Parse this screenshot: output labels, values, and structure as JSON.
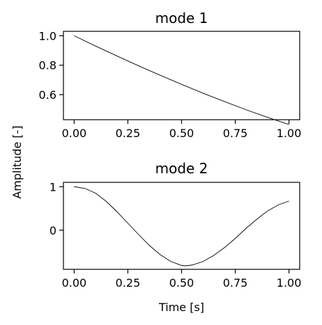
{
  "figure": {
    "shared_ylabel": "Amplitude [-]"
  },
  "chart_data": [
    {
      "type": "line",
      "title": "mode 1",
      "xlabel": "",
      "ylabel": "",
      "xlim": [
        -0.05,
        1.05
      ],
      "ylim": [
        0.43,
        1.03
      ],
      "xticks": [
        0.0,
        0.25,
        0.5,
        0.75,
        1.0
      ],
      "xtick_labels": [
        "0.00",
        "0.25",
        "0.50",
        "0.75",
        "1.00"
      ],
      "yticks": [
        0.6,
        0.8,
        1.0
      ],
      "ytick_labels": [
        "0.6",
        "0.8",
        "1.0"
      ],
      "grid": false,
      "color": "#000000",
      "series": [
        {
          "x": [
            0.0,
            0.1,
            0.2,
            0.3,
            0.4,
            0.5,
            0.6,
            0.7,
            0.8,
            0.9,
            1.0
          ],
          "values": [
            1.0,
            0.93,
            0.862,
            0.796,
            0.732,
            0.67,
            0.61,
            0.553,
            0.498,
            0.446,
            0.397
          ]
        }
      ]
    },
    {
      "type": "line",
      "title": "mode 2",
      "xlabel": "Time [s]",
      "ylabel": "",
      "xlim": [
        -0.05,
        1.05
      ],
      "ylim": [
        -0.9,
        1.1
      ],
      "xticks": [
        0.0,
        0.25,
        0.5,
        0.75,
        1.0
      ],
      "xtick_labels": [
        "0.00",
        "0.25",
        "0.50",
        "0.75",
        "1.00"
      ],
      "yticks": [
        0,
        1
      ],
      "ytick_labels": [
        "0",
        "1"
      ],
      "grid": false,
      "color": "#000000",
      "series": [
        {
          "x": [
            0.0,
            0.05,
            0.1,
            0.15,
            0.2,
            0.25,
            0.3,
            0.35,
            0.4,
            0.45,
            0.5,
            0.52,
            0.55,
            0.6,
            0.65,
            0.7,
            0.75,
            0.8,
            0.85,
            0.9,
            0.95,
            1.0
          ],
          "values": [
            1.0,
            0.96,
            0.85,
            0.66,
            0.42,
            0.16,
            -0.1,
            -0.35,
            -0.56,
            -0.72,
            -0.81,
            -0.82,
            -0.8,
            -0.72,
            -0.58,
            -0.4,
            -0.19,
            0.04,
            0.25,
            0.44,
            0.58,
            0.67
          ]
        }
      ]
    }
  ]
}
